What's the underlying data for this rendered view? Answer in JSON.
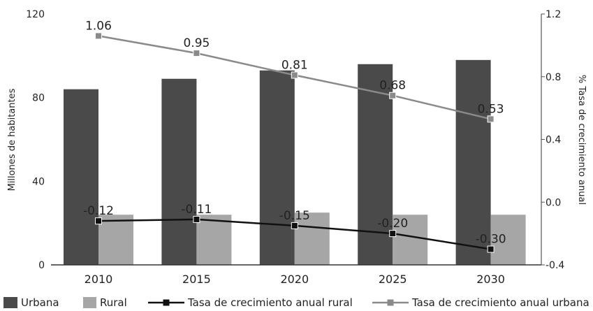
{
  "chart_data": {
    "type": "bar",
    "categories": [
      "2010",
      "2015",
      "2020",
      "2025",
      "2030"
    ],
    "ylabel": "Millones de habitantes",
    "ylim": [
      0,
      120
    ],
    "y_ticks": [
      "0",
      "40",
      "80",
      "120"
    ],
    "y2label": "% Tasa de crecimiento anual",
    "y2lim": [
      -0.4,
      1.2
    ],
    "y2_ticks": [
      "-0.4",
      "0.0",
      "0.4",
      "0.8",
      "1.2"
    ],
    "grid": false,
    "legend_position": "bottom",
    "series": [
      {
        "name": "Urbana",
        "kind": "bar",
        "axis": "left",
        "color": "#4a4a4a",
        "values": [
          84,
          89,
          93,
          96,
          98
        ]
      },
      {
        "name": "Rural",
        "kind": "bar",
        "axis": "left",
        "color": "#a6a6a6",
        "values": [
          24,
          24,
          25,
          24,
          24
        ]
      },
      {
        "name": "Tasa de crecimiento anual rural",
        "kind": "line",
        "axis": "right",
        "color": "#111111",
        "values": [
          -0.12,
          -0.11,
          -0.15,
          -0.2,
          -0.3
        ],
        "labels": [
          "-0.12",
          "-0.11",
          "-0.15",
          "-0.20",
          "-0.30"
        ]
      },
      {
        "name": "Tasa de crecimiento anual urbana",
        "kind": "line",
        "axis": "right",
        "color": "#8a8a8a",
        "values": [
          1.06,
          0.95,
          0.81,
          0.68,
          0.53
        ],
        "labels": [
          "1.06",
          "0.95",
          "0.81",
          "0.68",
          "0.53"
        ]
      }
    ]
  }
}
